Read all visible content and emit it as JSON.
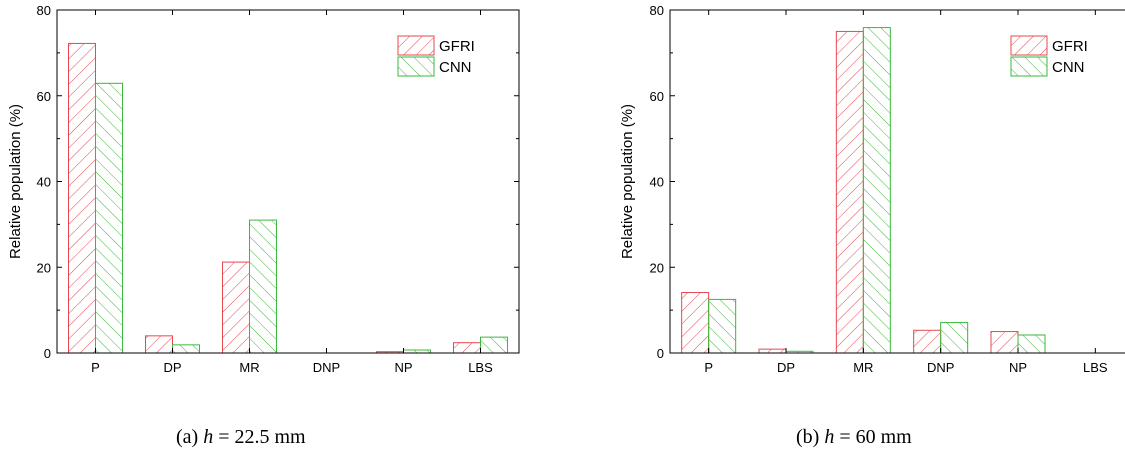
{
  "figure": {
    "panels": [
      {
        "caption_prefix": "(a)",
        "caption_var": "h",
        "caption_rest": "= 22.5 mm"
      },
      {
        "caption_prefix": "(b)",
        "caption_var": "h",
        "caption_rest": "= 60 mm"
      }
    ]
  },
  "colors": {
    "GFRI": "#e8474f",
    "CNN": "#3cb83c"
  },
  "chart_data": [
    {
      "type": "bar",
      "title": "",
      "xlabel": "",
      "ylabel": "Relative population (%)",
      "ylim": [
        0,
        80
      ],
      "yticks": [
        0,
        20,
        40,
        60,
        80
      ],
      "categories": [
        "P",
        "DP",
        "MR",
        "DNP",
        "NP",
        "LBS"
      ],
      "series": [
        {
          "name": "GFRI",
          "values": [
            72.2,
            4.0,
            21.2,
            0,
            0.3,
            2.4
          ]
        },
        {
          "name": "CNN",
          "values": [
            62.9,
            1.9,
            31.0,
            0,
            0.7,
            3.7
          ]
        }
      ],
      "legend": "top-right",
      "grid": false
    },
    {
      "type": "bar",
      "title": "",
      "xlabel": "",
      "ylabel": "Relative population (%)",
      "ylim": [
        0,
        80
      ],
      "yticks": [
        0,
        20,
        40,
        60,
        80
      ],
      "categories": [
        "P",
        "DP",
        "MR",
        "DNP",
        "NP",
        "LBS"
      ],
      "series": [
        {
          "name": "GFRI",
          "values": [
            14.1,
            0.9,
            75.0,
            5.3,
            5.0,
            0
          ]
        },
        {
          "name": "CNN",
          "values": [
            12.5,
            0.4,
            75.9,
            7.1,
            4.2,
            0
          ]
        }
      ],
      "legend": "top-right",
      "grid": false
    }
  ]
}
